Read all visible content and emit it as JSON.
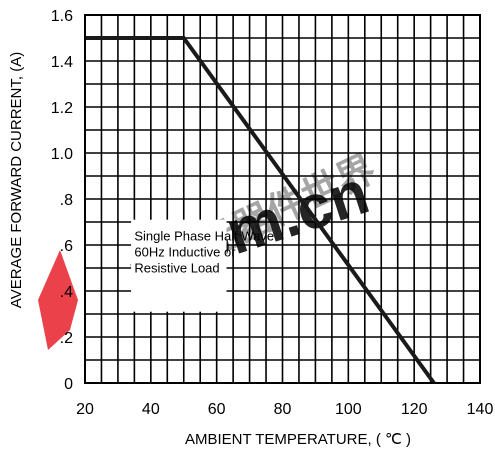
{
  "chart_data": {
    "type": "line",
    "title": "",
    "xlabel": "AMBIENT TEMPERATURE, ( ℃ )",
    "ylabel": "AVERAGE FORWARD CURRENT, (A)",
    "xlim": [
      20,
      140
    ],
    "ylim": [
      0,
      1.6
    ],
    "x_ticks": [
      20,
      40,
      60,
      80,
      100,
      120,
      140
    ],
    "x_tick_labels": [
      "20",
      "40",
      "60",
      "80",
      "100",
      "120",
      "140"
    ],
    "y_ticks": [
      0,
      0.2,
      0.4,
      0.6,
      0.8,
      1.0,
      1.2,
      1.4,
      1.6
    ],
    "y_tick_labels": [
      "0",
      ".2",
      ".4",
      ".6",
      ".8",
      "1.0",
      "1.2",
      "1.4",
      "1.6"
    ],
    "grid": true,
    "grid_minor_x_step": 5,
    "grid_minor_y_step": 0.1,
    "series": [
      {
        "name": "",
        "x": [
          20,
          50,
          126
        ],
        "y": [
          1.5,
          1.5,
          0.0
        ]
      }
    ],
    "annotation_lines": [
      "Single Phase Half Wave",
      "60Hz Inductive or",
      "Resistive Load"
    ],
    "colors": {
      "curve": "#1a1a1a",
      "grid": "#000000",
      "watermark_red": "#e8202a",
      "watermark_faint": "#c8c8c8"
    }
  },
  "watermark": {
    "text_main": "com.cn",
    "text_chinese": "电子元器件世界"
  }
}
